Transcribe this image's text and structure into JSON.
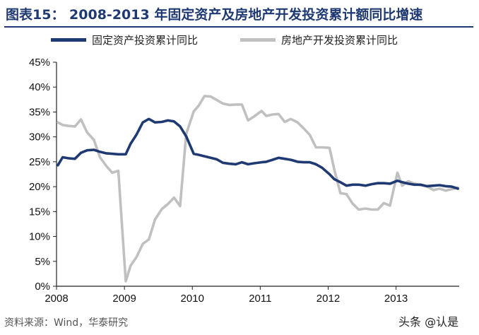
{
  "page": {
    "title": "图表15：  2008-2013 年固定资产及房地产开发投资累计额同比增速",
    "source": "资料来源：Wind，华泰研究",
    "watermark": "头条 @认是"
  },
  "colors": {
    "fixed": "#1f3a73",
    "realestate": "#c0c0c0",
    "title": "#1f3a73"
  },
  "chart_data": {
    "type": "line",
    "title": "2008-2013 年固定资产及房地产开发投资累计额同比增速",
    "xlabel": "",
    "ylabel": "",
    "xlim": [
      2008,
      2013.93
    ],
    "ylim": [
      0,
      45
    ],
    "x_ticks": [
      "2008",
      "2009",
      "2010",
      "2011",
      "2012",
      "2013"
    ],
    "y_ticks": [
      "0%",
      "5%",
      "10%",
      "15%",
      "20%",
      "25%",
      "30%",
      "35%",
      "40%",
      "45%"
    ],
    "legend_position": "top",
    "series": [
      {
        "name": "固定资产投资累计同比",
        "x": [
          2008.02,
          2008.09,
          2008.18,
          2008.27,
          2008.36,
          2008.45,
          2008.55,
          2008.64,
          2008.73,
          2008.82,
          2008.91,
          2009.02,
          2009.09,
          2009.18,
          2009.27,
          2009.36,
          2009.45,
          2009.55,
          2009.64,
          2009.73,
          2009.82,
          2009.91,
          2010.02,
          2010.09,
          2010.18,
          2010.27,
          2010.36,
          2010.45,
          2010.55,
          2010.64,
          2010.73,
          2010.82,
          2010.91,
          2011.02,
          2011.09,
          2011.18,
          2011.27,
          2011.36,
          2011.45,
          2011.55,
          2011.64,
          2011.73,
          2011.82,
          2011.91,
          2012.02,
          2012.09,
          2012.18,
          2012.27,
          2012.36,
          2012.45,
          2012.55,
          2012.64,
          2012.73,
          2012.82,
          2012.91,
          2013.02,
          2013.09,
          2013.18,
          2013.27,
          2013.36,
          2013.45,
          2013.55,
          2013.64,
          2013.73,
          2013.82,
          2013.91
        ],
        "values": [
          24.3,
          25.9,
          25.7,
          25.6,
          26.8,
          27.3,
          27.4,
          27.0,
          26.7,
          26.6,
          26.5,
          26.5,
          28.6,
          30.5,
          32.9,
          33.6,
          32.9,
          33.0,
          33.3,
          33.1,
          32.1,
          30.1,
          26.6,
          26.4,
          26.1,
          25.8,
          25.5,
          24.8,
          24.6,
          24.5,
          24.9,
          24.5,
          24.7,
          24.9,
          25.0,
          25.4,
          25.8,
          25.6,
          25.4,
          25.0,
          24.9,
          24.9,
          24.5,
          23.8,
          22.5,
          21.5,
          20.9,
          20.2,
          20.4,
          20.4,
          20.2,
          20.5,
          20.7,
          20.7,
          20.6,
          21.2,
          20.9,
          20.6,
          20.4,
          20.4,
          20.1,
          20.2,
          20.3,
          20.1,
          20.0,
          19.6
        ]
      },
      {
        "name": "房地产开发投资累计同比",
        "x": [
          2008.02,
          2008.09,
          2008.18,
          2008.27,
          2008.36,
          2008.45,
          2008.55,
          2008.64,
          2008.73,
          2008.82,
          2008.91,
          2009.02,
          2009.09,
          2009.18,
          2009.27,
          2009.36,
          2009.45,
          2009.55,
          2009.64,
          2009.73,
          2009.82,
          2009.91,
          2010.02,
          2010.09,
          2010.18,
          2010.27,
          2010.36,
          2010.45,
          2010.55,
          2010.64,
          2010.73,
          2010.82,
          2010.91,
          2011.02,
          2011.09,
          2011.18,
          2011.27,
          2011.36,
          2011.45,
          2011.55,
          2011.64,
          2011.73,
          2011.82,
          2011.91,
          2012.02,
          2012.09,
          2012.18,
          2012.27,
          2012.36,
          2012.45,
          2012.55,
          2012.64,
          2012.73,
          2012.82,
          2012.91,
          2013.02,
          2013.09,
          2013.18,
          2013.27,
          2013.36,
          2013.45,
          2013.55,
          2013.64,
          2013.73,
          2013.82,
          2013.91
        ],
        "values": [
          32.9,
          32.4,
          32.2,
          32.1,
          33.5,
          30.9,
          29.4,
          25.9,
          24.2,
          22.8,
          23.2,
          1.0,
          4.1,
          5.9,
          8.5,
          9.4,
          13.4,
          15.5,
          16.5,
          17.8,
          16.1,
          30.6,
          35.1,
          36.2,
          38.2,
          38.1,
          37.4,
          36.7,
          36.4,
          36.5,
          36.5,
          33.3,
          34.1,
          35.2,
          34.2,
          34.5,
          34.6,
          33.0,
          33.6,
          32.9,
          31.7,
          30.4,
          27.9,
          27.9,
          27.8,
          23.5,
          18.7,
          18.5,
          16.6,
          15.4,
          15.6,
          15.4,
          15.4,
          16.7,
          16.2,
          22.8,
          20.2,
          21.1,
          20.6,
          20.3,
          20.1,
          19.3,
          19.6,
          19.2,
          19.5,
          19.8
        ]
      }
    ]
  }
}
